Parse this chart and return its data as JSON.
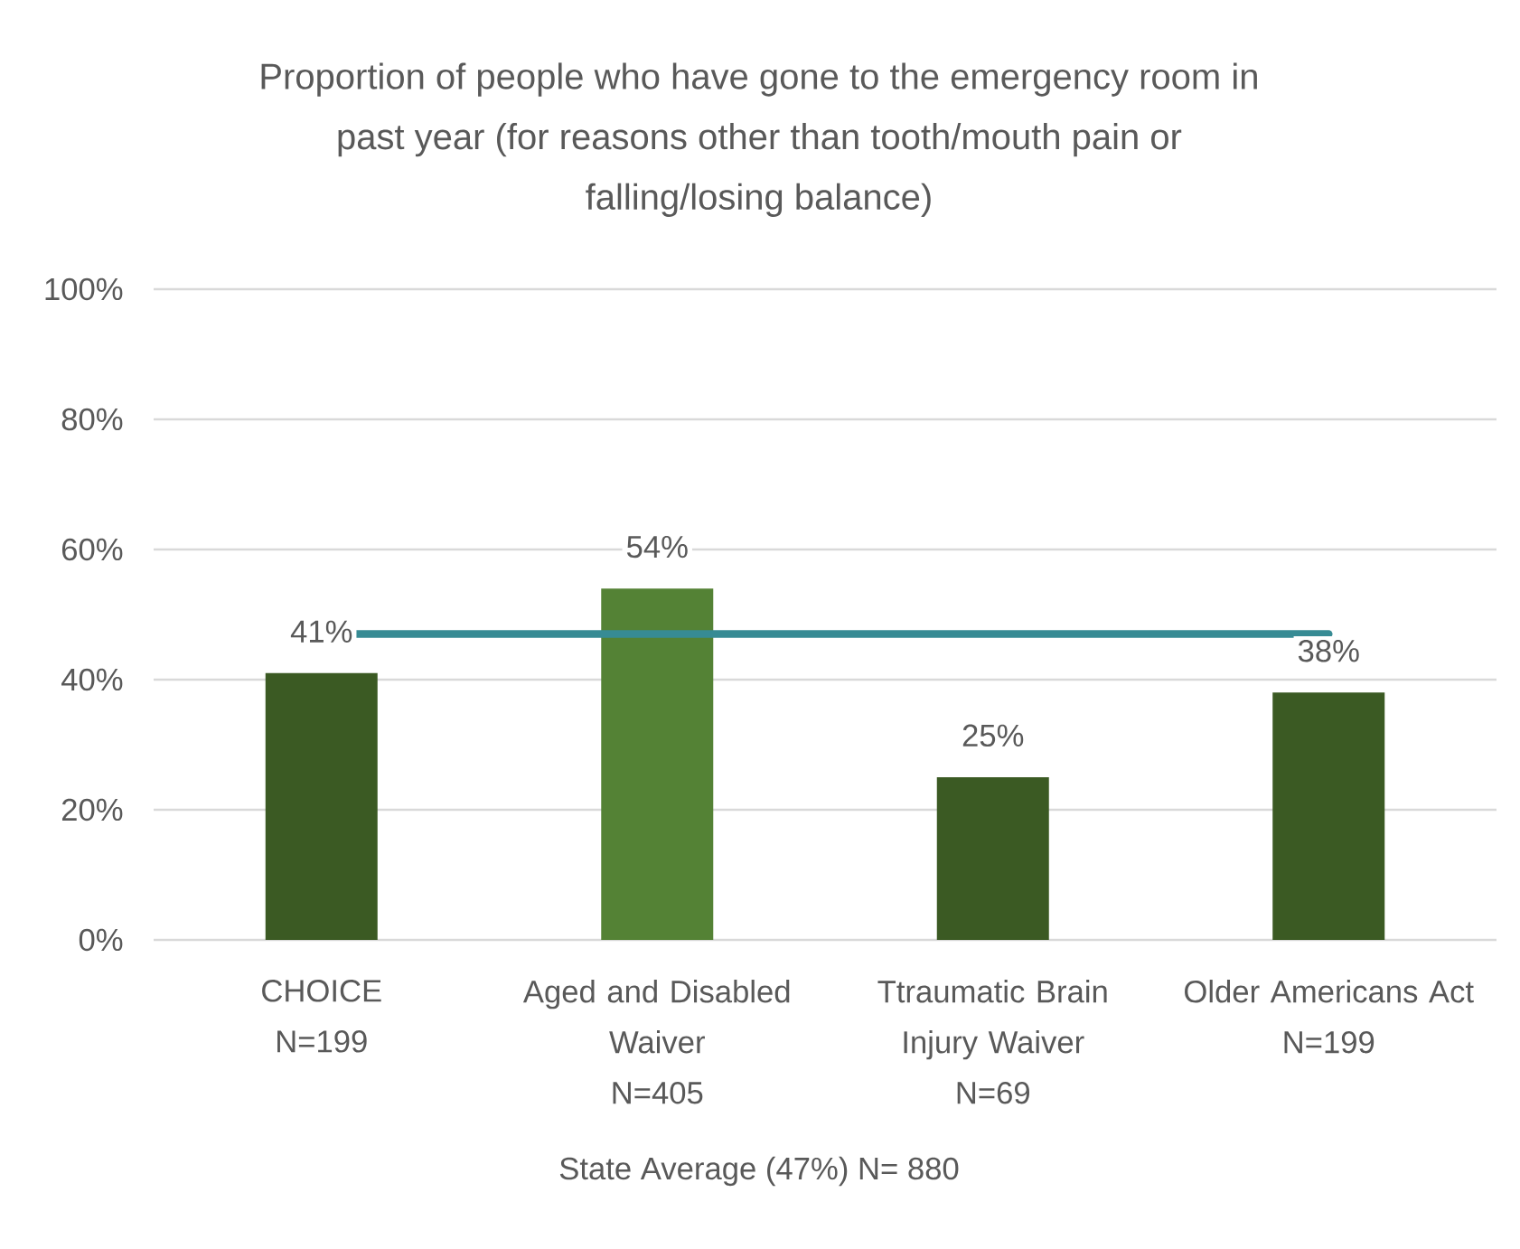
{
  "chart_data": {
    "type": "bar",
    "title": "Proportion of people who have gone to the emergency room in past year (for reasons other than tooth/mouth pain or falling/losing balance)",
    "categories": [
      "CHOICE\nN=199",
      "Aged and Disabled\nWaiver\nN=405",
      "Ttraumatic Brain\nInjury Waiver\nN=69",
      "Older Americans Act\nN=199"
    ],
    "values": [
      41,
      54,
      25,
      38
    ],
    "colors": [
      "#3b5a23",
      "#548235",
      "#3b5a23",
      "#3b5a23"
    ],
    "value_labels": [
      "41%",
      "54%",
      "25%",
      "38%"
    ],
    "ylim": [
      0,
      100
    ],
    "yticks": [
      {
        "value": 0,
        "label": "0%"
      },
      {
        "value": 20,
        "label": "20%"
      },
      {
        "value": 40,
        "label": "40%"
      },
      {
        "value": 60,
        "label": "60%"
      },
      {
        "value": 80,
        "label": "80%"
      },
      {
        "value": 100,
        "label": "100%"
      }
    ],
    "grid": "y",
    "ref_lines": [
      {
        "axis": "y",
        "value": 47,
        "color": "#378b94"
      }
    ],
    "annotations": [
      "State Average (47%) N= 880"
    ]
  }
}
